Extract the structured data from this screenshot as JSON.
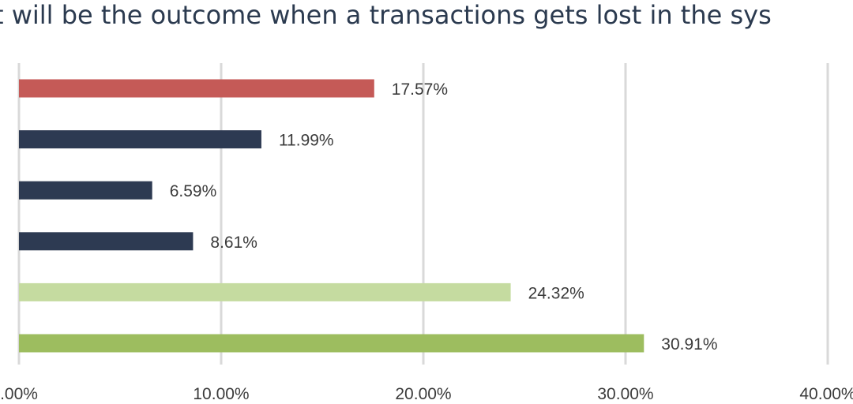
{
  "chart_data": {
    "type": "bar",
    "orientation": "horizontal",
    "title": "t will be the outcome when a transactions gets lost in the sys",
    "xlabel": "",
    "ylabel": "",
    "xlim": [
      0,
      40
    ],
    "x_ticks": [
      0,
      10,
      20,
      30,
      40
    ],
    "x_tick_labels": [
      ".00%",
      "10.00%",
      "20.00%",
      "30.00%",
      "40.00%"
    ],
    "grid": true,
    "legend": "none",
    "values": [
      17.57,
      11.99,
      6.59,
      8.61,
      24.32,
      30.91
    ],
    "data_labels": [
      "17.57%",
      "11.99%",
      "6.59%",
      "8.61%",
      "24.32%",
      "30.91%"
    ],
    "bar_colors": [
      "#c55a57",
      "#2d3a52",
      "#2d3a52",
      "#2d3a52",
      "#c5dba0",
      "#9dbd5f"
    ]
  }
}
